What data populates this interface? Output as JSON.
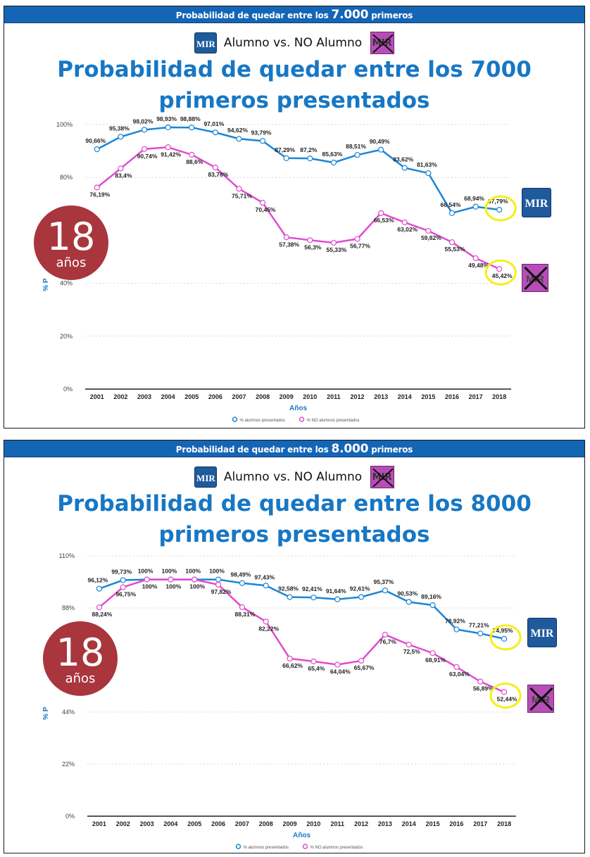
{
  "colors": {
    "header_bg": "#1565b5",
    "title": "#1777c4",
    "series_alumno": "#1a86d6",
    "series_no_alumno": "#e04bd0",
    "badge": "#a8363c",
    "highlight": "#f5ee18"
  },
  "panels": [
    {
      "header_prefix": "Probabilidad de quedar entre los",
      "header_number": "7.000",
      "header_suffix": "primeros",
      "subtitle_alumno": "Alumno vs. NO Alumno",
      "logo_text": "MIR",
      "title_line1": "Probabilidad de quedar entre los 7000",
      "title_line2": "primeros presentados",
      "badge_num": "18",
      "badge_label": "años"
    },
    {
      "header_prefix": "Probabilidad de quedar entre los",
      "header_number": "8.000",
      "header_suffix": "primeros",
      "subtitle_alumno": "Alumno vs. NO Alumno",
      "logo_text": "MIR",
      "title_line1": "Probabilidad de quedar entre los 8000",
      "title_line2": "primeros presentados",
      "badge_num": "18",
      "badge_label": "años"
    }
  ],
  "chart_data": [
    {
      "type": "line",
      "categories": [
        "2001",
        "2002",
        "2003",
        "2004",
        "2005",
        "2006",
        "2007",
        "2008",
        "2009",
        "2010",
        "2011",
        "2012",
        "2013",
        "2014",
        "2015",
        "2016",
        "2017",
        "2018"
      ],
      "xlabel": "Años",
      "ylabel": "% P",
      "yticks": [
        "0%",
        "20%",
        "40%",
        "80%",
        "100%"
      ],
      "ylim": [
        0,
        100
      ],
      "legend": [
        "% alumnos presentados",
        "% NO alumnos presentados"
      ],
      "series": [
        {
          "name": "% alumnos presentados",
          "values": [
            90.66,
            95.38,
            98.02,
            98.93,
            98.88,
            97.01,
            94.62,
            93.79,
            87.29,
            87.2,
            85.63,
            88.51,
            90.49,
            83.62,
            81.63,
            66.54,
            68.94,
            67.79
          ],
          "labels": [
            "90,66%",
            "95,38%",
            "98,02%",
            "98,93%",
            "98,88%",
            "97,01%",
            "94,62%",
            "93,79%",
            "87,29%",
            "87,2%",
            "85,63%",
            "88,51%",
            "90,49%",
            "83,62%",
            "81,63%",
            "66,54%",
            "68,94%",
            "67,79%"
          ]
        },
        {
          "name": "% NO alumnos presentados",
          "values": [
            76.19,
            83.4,
            90.74,
            91.42,
            88.6,
            83.78,
            75.71,
            70.45,
            57.38,
            56.3,
            55.33,
            56.77,
            66.53,
            63.02,
            59.82,
            55.53,
            49.48,
            45.42
          ],
          "labels": [
            "76,19%",
            "83,4%",
            "90,74%",
            "91,42%",
            "88,6%",
            "83,78%",
            "75,71%",
            "70,45%",
            "57,38%",
            "56,3%",
            "55,33%",
            "56,77%",
            "66,53%",
            "63,02%",
            "59,82%",
            "55,53%",
            "49,48%",
            "45,42%"
          ]
        }
      ]
    },
    {
      "type": "line",
      "categories": [
        "2001",
        "2002",
        "2003",
        "2004",
        "2005",
        "2006",
        "2007",
        "2008",
        "2009",
        "2010",
        "2011",
        "2012",
        "2013",
        "2014",
        "2015",
        "2016",
        "2017",
        "2018"
      ],
      "xlabel": "Años",
      "ylabel": "% P",
      "yticks": [
        "0%",
        "22%",
        "44%",
        "88%",
        "110%"
      ],
      "ylim": [
        0,
        110
      ],
      "legend": [
        "% alumnos presentados",
        "% NO alumnos presentados"
      ],
      "series": [
        {
          "name": "% alumnos presentados",
          "values": [
            96.12,
            99.73,
            100,
            100,
            100,
            100,
            98.49,
            97.43,
            92.58,
            92.41,
            91.64,
            92.61,
            95.37,
            90.53,
            89.16,
            78.92,
            77.21,
            74.95
          ],
          "labels": [
            "96,12%",
            "99,73%",
            "100%",
            "100%",
            "100%",
            "100%",
            "98,49%",
            "97,43%",
            "92,58%",
            "92,41%",
            "91,64%",
            "92,61%",
            "95,37%",
            "90,53%",
            "89,16%",
            "78,92%",
            "77,21%",
            "74,95%"
          ]
        },
        {
          "name": "% NO alumnos presentados",
          "values": [
            88.24,
            96.75,
            100,
            100,
            100,
            97.82,
            88.31,
            82.22,
            66.62,
            65.4,
            64.04,
            65.67,
            76.7,
            72.5,
            68.91,
            63.04,
            56.89,
            52.44
          ],
          "labels": [
            "88,24%",
            "96,75%",
            "100%",
            "100%",
            "100%",
            "97,82%",
            "88,31%",
            "82,22%",
            "66,62%",
            "65,4%",
            "64,04%",
            "65,67%",
            "76,7%",
            "72,5%",
            "68,91%",
            "63,04%",
            "56,89%",
            "52,44%"
          ]
        }
      ]
    }
  ]
}
